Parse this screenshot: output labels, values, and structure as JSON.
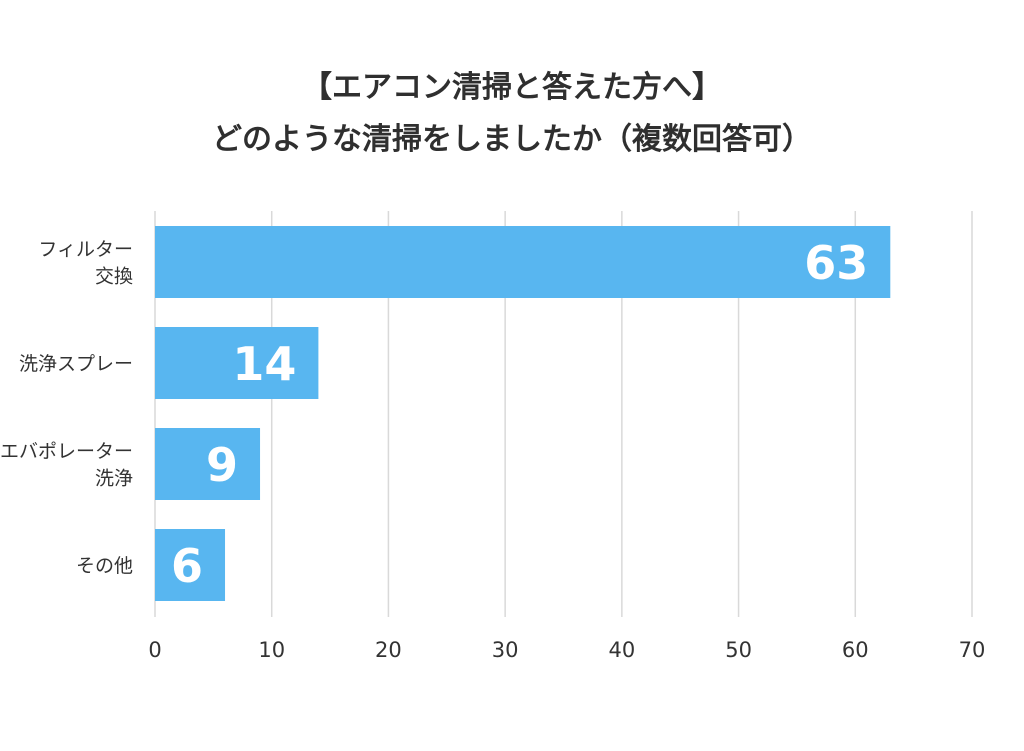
{
  "chart_data": {
    "type": "bar",
    "orientation": "horizontal",
    "title_lines": [
      "【エアコン清掃と答えた方へ】",
      "どのような清掃をしましたか（複数回答可）"
    ],
    "categories": [
      [
        "フィルター",
        "交換"
      ],
      [
        "洗浄スプレー"
      ],
      [
        "エバポレーター",
        "洗浄"
      ],
      [
        "その他"
      ]
    ],
    "values": [
      63,
      14,
      9,
      6
    ],
    "data_labels": [
      "63",
      "14",
      "9",
      "6"
    ],
    "xlim": [
      0,
      70
    ],
    "x_ticks": [
      "0",
      "10",
      "20",
      "30",
      "40",
      "50",
      "60",
      "70"
    ],
    "grid": true,
    "bar_color": "#58b6f0",
    "grid_color": "#d9d9d9",
    "label_color": "#ffffff"
  }
}
